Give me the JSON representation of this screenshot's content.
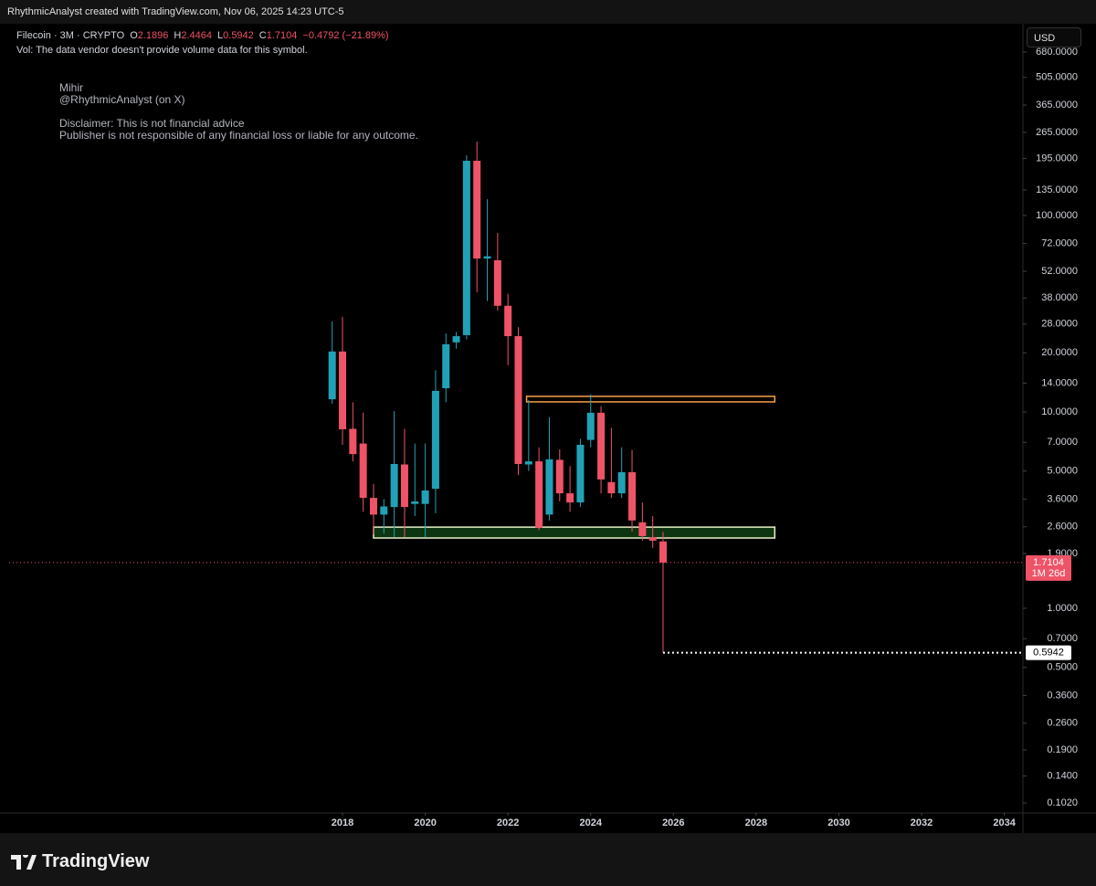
{
  "header": {
    "attribution": "RhythmicAnalyst created with TradingView.com, Nov 06, 2025 14:23 UTC-5",
    "currency": "USD",
    "brand": "TradingView"
  },
  "chart_data": {
    "type": "candlestick",
    "symbol": "Filecoin · 3M · CRYPTO",
    "ohlc_letters": [
      "O",
      "H",
      "L",
      "C"
    ],
    "change_label": "−0.4792 (−21.89%)",
    "volume_note": "Vol: The data vendor doesn't provide volume data for this symbol.",
    "annotations": [
      "Mihir",
      "@RhythmicAnalyst (on X)",
      "Disclaimer: This is not financial advice",
      "Publisher is not responsible of any financial loss or liable for any outcome."
    ],
    "countdown": "1M 26d",
    "log_scale": true,
    "grid": false,
    "up_color": "#22a1b6",
    "down_color": "#ef5367",
    "x": [
      2017.75,
      2018,
      2018.25,
      2018.5,
      2018.75,
      2019,
      2019.25,
      2019.5,
      2019.75,
      2020,
      2020.25,
      2020.5,
      2020.75,
      2021,
      2021.25,
      2021.5,
      2021.75,
      2022,
      2022.25,
      2022.5,
      2022.75,
      2023,
      2023.25,
      2023.5,
      2023.75,
      2024,
      2024.25,
      2024.5,
      2024.75,
      2025,
      2025.25,
      2025.5,
      2025.75
    ],
    "open": [
      11.6,
      20.3,
      8.2,
      6.9,
      3.65,
      3.0,
      3.28,
      5.4,
      3.4,
      3.4,
      4.06,
      13.2,
      22.6,
      24.6,
      190,
      60.4,
      59.2,
      34.7,
      24.3,
      5.4,
      5.6,
      3.0,
      5.7,
      3.85,
      3.46,
      7.2,
      9.9,
      4.39,
      3.85,
      4.93,
      2.74,
      2.3,
      2.1896
    ],
    "high": [
      28.9,
      30.5,
      11.2,
      9.9,
      4.3,
      3.6,
      10.1,
      8.2,
      6.9,
      6.9,
      16.3,
      25.1,
      25.5,
      203,
      238,
      121,
      81.6,
      39.9,
      27,
      11.5,
      6.6,
      9.4,
      6.45,
      5.3,
      7.3,
      12.3,
      10.7,
      8.3,
      6.6,
      6.4,
      3.46,
      2.95,
      2.4464
    ],
    "low": [
      11,
      6.8,
      5.6,
      3.1,
      2.38,
      2.4,
      2.3,
      2.3,
      2.95,
      2.3,
      3.05,
      11.2,
      21,
      23.4,
      40.6,
      36.7,
      32.8,
      17.3,
      4.77,
      5.0,
      2.5,
      2.8,
      3.5,
      3.1,
      3.28,
      6.6,
      3.85,
      3.65,
      3.65,
      2.46,
      2.21,
      2.03,
      0.5942
    ],
    "close": [
      20.3,
      8.16,
      6.1,
      3.65,
      3.0,
      3.3,
      5.43,
      3.28,
      3.5,
      3.98,
      12.8,
      22.1,
      24.3,
      190,
      60.4,
      62,
      34.7,
      24.3,
      5.43,
      5.6,
      2.57,
      5.73,
      3.85,
      3.46,
      6.8,
      9.9,
      4.53,
      3.85,
      4.93,
      2.8,
      2.33,
      2.21,
      1.7104
    ],
    "zones": [
      {
        "x": [
          2022.45,
          2028.45
        ],
        "y": [
          11.25,
          12.0
        ],
        "color": "#f5a04a"
      },
      {
        "x": [
          2018.75,
          2028.45
        ],
        "y": [
          2.28,
          2.59
        ],
        "color": "#e8f0c8"
      }
    ],
    "xlim": [
      2009.94,
      2034.45
    ],
    "xticks": [
      2018,
      2020,
      2022,
      2024,
      2026,
      2028,
      2030,
      2032,
      2034
    ],
    "ylim": [
      0.0908,
      937
    ],
    "yticks": [
      {
        "value": 680,
        "label": "680.0000"
      },
      {
        "value": 505,
        "label": "505.0000"
      },
      {
        "value": 365,
        "label": "365.0000"
      },
      {
        "value": 265,
        "label": "265.0000"
      },
      {
        "value": 195,
        "label": "195.0000"
      },
      {
        "value": 135,
        "label": "135.0000"
      },
      {
        "value": 100,
        "label": "100.0000"
      },
      {
        "value": 72,
        "label": "72.0000"
      },
      {
        "value": 52,
        "label": "52.0000"
      },
      {
        "value": 38,
        "label": "38.0000"
      },
      {
        "value": 28,
        "label": "28.0000"
      },
      {
        "value": 20,
        "label": "20.0000"
      },
      {
        "value": 14,
        "label": "14.0000"
      },
      {
        "value": 10,
        "label": "10.0000"
      },
      {
        "value": 7,
        "label": "7.0000"
      },
      {
        "value": 5,
        "label": "5.0000"
      },
      {
        "value": 3.6,
        "label": "3.6000"
      },
      {
        "value": 2.6,
        "label": "2.6000"
      },
      {
        "value": 1.9,
        "label": "1.9000"
      },
      {
        "value": 1,
        "label": "1.0000"
      },
      {
        "value": 0.7,
        "label": "0.7000"
      },
      {
        "value": 0.5,
        "label": "0.5000"
      },
      {
        "value": 0.36,
        "label": "0.3600"
      },
      {
        "value": 0.26,
        "label": "0.2600"
      },
      {
        "value": 0.19,
        "label": "0.1900"
      },
      {
        "value": 0.14,
        "label": "0.1400"
      },
      {
        "value": 0.102,
        "label": "0.1020"
      }
    ]
  }
}
